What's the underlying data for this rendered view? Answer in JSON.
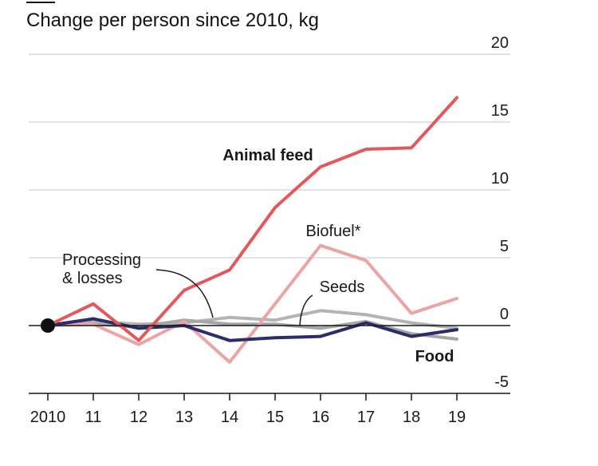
{
  "chart_data": {
    "type": "line",
    "title": "Change per person since 2010, kg",
    "xlabel": "",
    "ylabel": "",
    "categories": [
      "2010",
      "11",
      "12",
      "13",
      "14",
      "15",
      "16",
      "17",
      "18",
      "19"
    ],
    "ylim": [
      -5,
      20
    ],
    "yticks": [
      -5,
      0,
      5,
      10,
      15,
      20
    ],
    "ytick_labels": [
      "-5",
      "0",
      "5",
      "10",
      "15",
      "20"
    ],
    "grid": true,
    "series": [
      {
        "key": "processing",
        "name": "Processing & losses",
        "label_lines": [
          "Processing",
          "& losses"
        ],
        "color": "#b3b3b3",
        "values": [
          0,
          0.3,
          0.1,
          0.2,
          0.6,
          0.4,
          1.1,
          0.8,
          0.2,
          -0.2
        ]
      },
      {
        "key": "seeds",
        "name": "Seeds",
        "label_lines": [
          "Seeds"
        ],
        "color": "#a6a6a6",
        "values": [
          0,
          0.1,
          -0.1,
          0.4,
          0.1,
          0.1,
          -0.2,
          0.3,
          -0.6,
          -1.0
        ]
      },
      {
        "key": "biofuel",
        "name": "Biofuel*",
        "label_lines": [
          "Biofuel*"
        ],
        "color": "#eca3a3",
        "values": [
          0,
          0.1,
          -1.4,
          0.3,
          -2.7,
          1.6,
          5.9,
          4.8,
          0.9,
          2.0
        ]
      },
      {
        "key": "food",
        "name": "Food",
        "label_lines": [
          "Food"
        ],
        "color": "#2c2c6b",
        "values": [
          0,
          0.5,
          -0.2,
          0.0,
          -1.1,
          -0.9,
          -0.8,
          0.2,
          -0.8,
          -0.3
        ]
      },
      {
        "key": "feed",
        "name": "Animal feed",
        "label_lines": [
          "Animal feed"
        ],
        "color": "#e3585b",
        "values": [
          0,
          1.6,
          -1.1,
          2.6,
          4.1,
          8.7,
          11.7,
          13.0,
          13.1,
          16.8
        ]
      }
    ]
  }
}
